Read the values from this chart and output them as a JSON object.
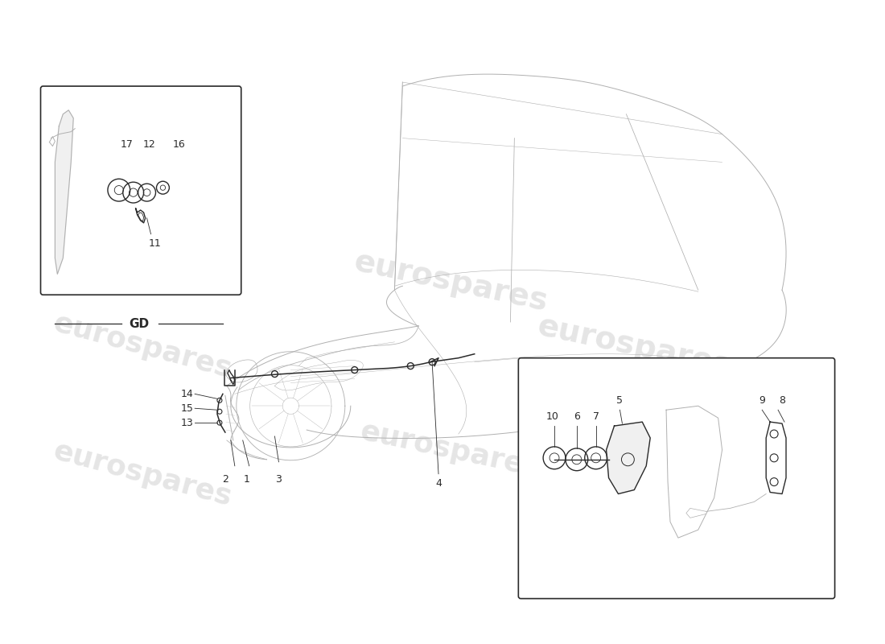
{
  "bg_color": "#ffffff",
  "line_color": "#2a2a2a",
  "car_line_color": "#b0b0b0",
  "watermark_color": "#d8d8d8",
  "watermark_text": "eurospares",
  "font_size_label": 9,
  "font_size_gd": 11,
  "gd_label": "GD",
  "car_lw": 0.7,
  "part_lw": 1.1
}
